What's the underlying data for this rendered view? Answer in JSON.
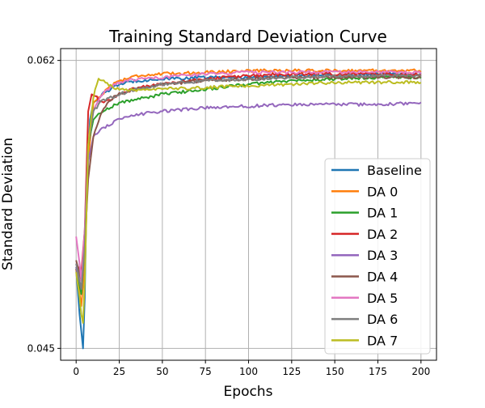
{
  "chart_data": {
    "type": "line",
    "title": "Training Standard Deviation Curve",
    "xlabel": "Epochs",
    "ylabel": "Standard Deviation",
    "xlim": [
      -9,
      209
    ],
    "ylim": [
      0.0443,
      0.0627
    ],
    "x_ticks": [
      0,
      25,
      50,
      75,
      100,
      125,
      150,
      175,
      200
    ],
    "y_ticks": [
      0.045,
      0.062
    ],
    "y_tick_labels": [
      "0.045",
      "0.062"
    ],
    "grid": true,
    "legend_position": "lower-right",
    "series": [
      {
        "name": "Baseline",
        "color": "#1f77b4",
        "points": [
          [
            0,
            0.0497
          ],
          [
            2,
            0.047
          ],
          [
            3,
            0.046
          ],
          [
            4,
            0.045
          ],
          [
            5,
            0.048
          ],
          [
            6,
            0.054
          ],
          [
            8,
            0.0585
          ],
          [
            10,
            0.0595
          ],
          [
            15,
            0.06
          ],
          [
            20,
            0.0603
          ],
          [
            25,
            0.0606
          ],
          [
            35,
            0.0608
          ],
          [
            50,
            0.0609
          ],
          [
            75,
            0.061
          ],
          [
            100,
            0.061
          ],
          [
            125,
            0.0611
          ],
          [
            150,
            0.0611
          ],
          [
            175,
            0.0612
          ],
          [
            200,
            0.0612
          ]
        ]
      },
      {
        "name": "DA 0",
        "color": "#ff7f0e",
        "points": [
          [
            0,
            0.0497
          ],
          [
            3,
            0.0475
          ],
          [
            5,
            0.05
          ],
          [
            7,
            0.056
          ],
          [
            10,
            0.0595
          ],
          [
            15,
            0.06
          ],
          [
            20,
            0.0605
          ],
          [
            25,
            0.0608
          ],
          [
            35,
            0.0611
          ],
          [
            50,
            0.0612
          ],
          [
            75,
            0.0613
          ],
          [
            100,
            0.0614
          ],
          [
            125,
            0.0614
          ],
          [
            150,
            0.0614
          ],
          [
            175,
            0.0614
          ],
          [
            200,
            0.0614
          ]
        ]
      },
      {
        "name": "DA 1",
        "color": "#2ca02c",
        "points": [
          [
            0,
            0.0498
          ],
          [
            3,
            0.0482
          ],
          [
            5,
            0.051
          ],
          [
            7,
            0.057
          ],
          [
            10,
            0.0585
          ],
          [
            15,
            0.059
          ],
          [
            25,
            0.0595
          ],
          [
            35,
            0.0597
          ],
          [
            50,
            0.06
          ],
          [
            75,
            0.0603
          ],
          [
            100,
            0.0606
          ],
          [
            125,
            0.0608
          ],
          [
            150,
            0.0609
          ],
          [
            175,
            0.061
          ],
          [
            200,
            0.061
          ]
        ]
      },
      {
        "name": "DA 2",
        "color": "#d62728",
        "points": [
          [
            0,
            0.05
          ],
          [
            3,
            0.0495
          ],
          [
            5,
            0.052
          ],
          [
            7,
            0.059
          ],
          [
            9,
            0.06
          ],
          [
            12,
            0.0598
          ],
          [
            15,
            0.0595
          ],
          [
            20,
            0.0597
          ],
          [
            25,
            0.06
          ],
          [
            35,
            0.0604
          ],
          [
            50,
            0.0606
          ],
          [
            75,
            0.0609
          ],
          [
            100,
            0.0611
          ],
          [
            125,
            0.0612
          ],
          [
            150,
            0.0612
          ],
          [
            175,
            0.0612
          ],
          [
            200,
            0.0612
          ]
        ]
      },
      {
        "name": "DA 3",
        "color": "#9467bd",
        "points": [
          [
            0,
            0.0498
          ],
          [
            3,
            0.0485
          ],
          [
            5,
            0.051
          ],
          [
            7,
            0.056
          ],
          [
            10,
            0.0575
          ],
          [
            15,
            0.058
          ],
          [
            25,
            0.0585
          ],
          [
            35,
            0.0588
          ],
          [
            50,
            0.059
          ],
          [
            75,
            0.0592
          ],
          [
            100,
            0.0593
          ],
          [
            125,
            0.0594
          ],
          [
            150,
            0.0594
          ],
          [
            175,
            0.0594
          ],
          [
            200,
            0.0595
          ]
        ]
      },
      {
        "name": "DA 4",
        "color": "#8c564b",
        "points": [
          [
            0,
            0.0502
          ],
          [
            3,
            0.049
          ],
          [
            5,
            0.051
          ],
          [
            7,
            0.055
          ],
          [
            10,
            0.0575
          ],
          [
            15,
            0.059
          ],
          [
            20,
            0.0597
          ],
          [
            25,
            0.06
          ],
          [
            35,
            0.0603
          ],
          [
            50,
            0.0606
          ],
          [
            75,
            0.0608
          ],
          [
            100,
            0.0609
          ],
          [
            125,
            0.061
          ],
          [
            150,
            0.061
          ],
          [
            175,
            0.061
          ],
          [
            200,
            0.061
          ]
        ]
      },
      {
        "name": "DA 5",
        "color": "#e377c2",
        "points": [
          [
            0,
            0.0516
          ],
          [
            2,
            0.05
          ],
          [
            3,
            0.049
          ],
          [
            5,
            0.052
          ],
          [
            7,
            0.057
          ],
          [
            10,
            0.059
          ],
          [
            15,
            0.06
          ],
          [
            20,
            0.0604
          ],
          [
            25,
            0.0607
          ],
          [
            35,
            0.0609
          ],
          [
            50,
            0.061
          ],
          [
            75,
            0.0612
          ],
          [
            100,
            0.0613
          ],
          [
            125,
            0.0613
          ],
          [
            150,
            0.0613
          ],
          [
            175,
            0.0613
          ],
          [
            200,
            0.0613
          ]
        ]
      },
      {
        "name": "DA 6",
        "color": "#7f7f7f",
        "points": [
          [
            0,
            0.05
          ],
          [
            3,
            0.0485
          ],
          [
            5,
            0.051
          ],
          [
            7,
            0.057
          ],
          [
            10,
            0.059
          ],
          [
            15,
            0.0596
          ],
          [
            25,
            0.06
          ],
          [
            35,
            0.0603
          ],
          [
            50,
            0.0606
          ],
          [
            75,
            0.0608
          ],
          [
            100,
            0.0609
          ],
          [
            125,
            0.061
          ],
          [
            150,
            0.0611
          ],
          [
            175,
            0.0611
          ],
          [
            200,
            0.0611
          ]
        ]
      },
      {
        "name": "DA 7",
        "color": "#bcbd22",
        "points": [
          [
            0,
            0.0495
          ],
          [
            2,
            0.048
          ],
          [
            3,
            0.047
          ],
          [
            4,
            0.0465
          ],
          [
            5,
            0.049
          ],
          [
            7,
            0.057
          ],
          [
            10,
            0.0598
          ],
          [
            13,
            0.061
          ],
          [
            15,
            0.0608
          ],
          [
            20,
            0.0605
          ],
          [
            25,
            0.0603
          ],
          [
            35,
            0.0602
          ],
          [
            50,
            0.0603
          ],
          [
            75,
            0.0604
          ],
          [
            100,
            0.0605
          ],
          [
            125,
            0.0606
          ],
          [
            150,
            0.0607
          ],
          [
            175,
            0.0607
          ],
          [
            200,
            0.0607
          ]
        ]
      }
    ]
  }
}
